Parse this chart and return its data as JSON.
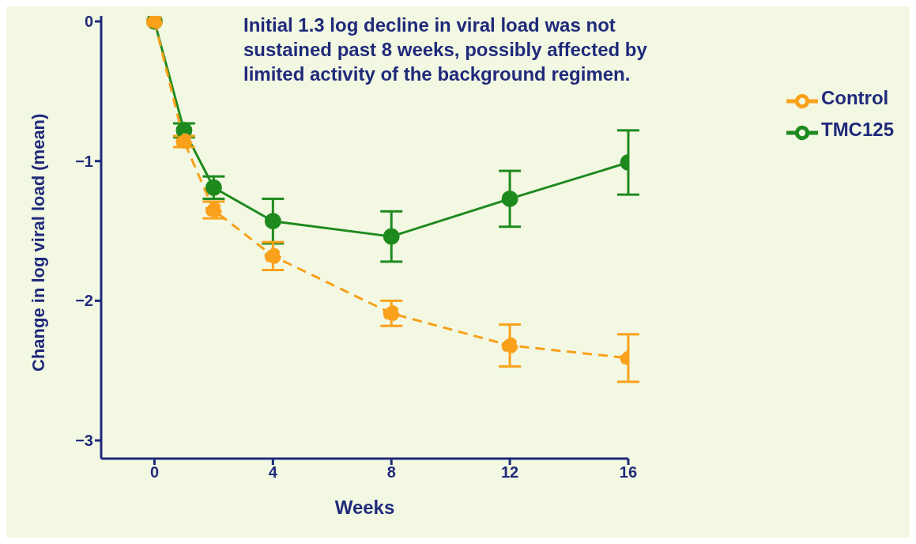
{
  "chart_data": {
    "type": "line",
    "xlabel": "Weeks",
    "ylabel": "Change in log viral load (mean)",
    "annotations": [
      "Initial 1.3 log decline in viral load was not sustained past 8 weeks, possibly affected by limited activity of the background regimen."
    ],
    "x": [
      0,
      1,
      2,
      4,
      8,
      12,
      16
    ],
    "series": [
      {
        "name": "TMC125",
        "color": "#1e8a1e",
        "values": [
          0,
          -0.78,
          -1.19,
          -1.43,
          -1.54,
          -1.27,
          -1.01
        ],
        "errors": [
          null,
          0.05,
          0.08,
          0.16,
          0.18,
          0.2,
          0.23
        ],
        "line_style": "solid"
      },
      {
        "name": "Control",
        "color": "#f9a11b",
        "values": [
          0,
          -0.86,
          -1.35,
          -1.68,
          -2.09,
          -2.32,
          -2.41
        ],
        "errors": [
          null,
          0.04,
          0.06,
          0.1,
          0.09,
          0.15,
          0.17
        ],
        "line_style": "dashed"
      }
    ],
    "xlim": [
      -1.8,
      16
    ],
    "xticks": [
      0,
      4,
      8,
      12,
      16
    ],
    "ylim": [
      -3.13,
      0.04
    ],
    "yticks": [
      {
        "value": 0,
        "label": "0"
      },
      {
        "value": -1,
        "label": "−1"
      },
      {
        "value": -2,
        "label": "−2"
      },
      {
        "value": -3,
        "label": "−3"
      }
    ],
    "grid": false,
    "legend": "top right",
    "marker": "circle"
  }
}
